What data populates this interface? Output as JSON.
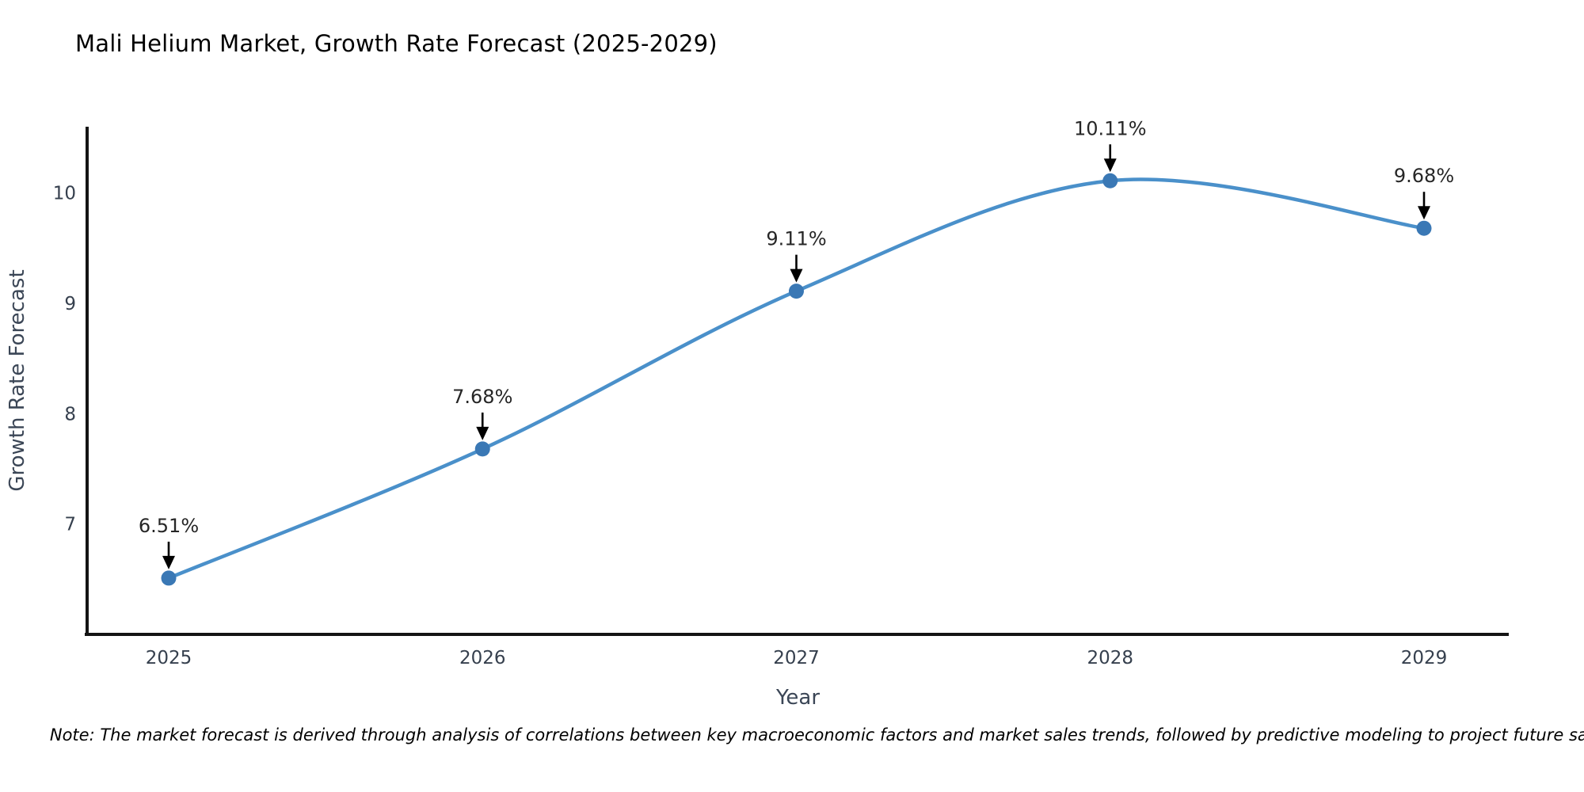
{
  "title": "Mali Helium Market, Growth Rate Forecast (2025-2029)",
  "note": "Note: The market forecast is derived through analysis of correlations between key macroeconomic factors and market sales trends, followed by predictive modeling to project future sales.",
  "chart_data": {
    "type": "line",
    "title": "Mali Helium Market, Growth Rate Forecast (2025-2029)",
    "xlabel": "Year",
    "ylabel": "Growth Rate Forecast",
    "x": [
      2025,
      2026,
      2027,
      2028,
      2029
    ],
    "series": [
      {
        "name": "Growth Rate Forecast",
        "values": [
          6.51,
          7.68,
          9.11,
          10.11,
          9.68
        ]
      }
    ],
    "point_labels": [
      "6.51%",
      "7.68%",
      "9.11%",
      "10.11%",
      "9.68%"
    ],
    "xticks": [
      "2025",
      "2026",
      "2027",
      "2028",
      "2029"
    ],
    "yticks": [
      7,
      8,
      9,
      10
    ],
    "ylim": [
      6.0,
      10.6
    ],
    "grid": false,
    "legend": "none",
    "curve": "smooth-spline",
    "annotations": "value labels with black down-arrows pointing at each marker"
  },
  "colors": {
    "background": "#ffffff",
    "title": "#2e3f5f",
    "axis_title": "#3b4656",
    "tick_label": "#36404e",
    "spine": "#141414",
    "line": "#4a90ca",
    "marker": "#3a78b5",
    "annotation_text": "#262626",
    "annotation_arrow": "#000000",
    "note_text": "#111111"
  }
}
